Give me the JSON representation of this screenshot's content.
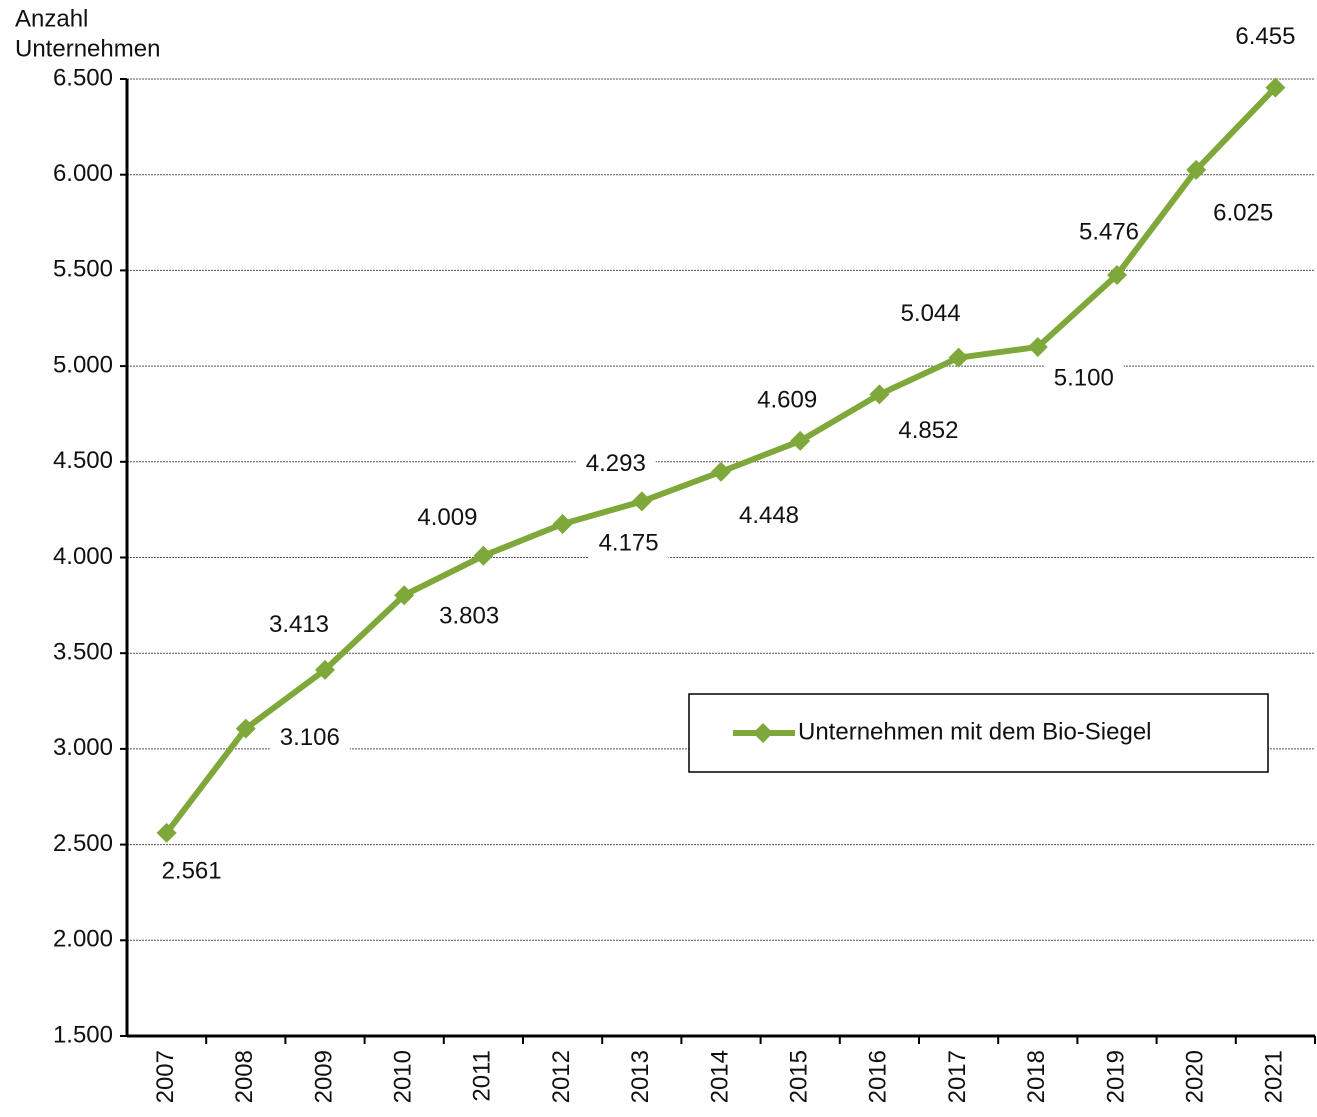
{
  "chart_data": {
    "type": "line",
    "ylabel": [
      "Anzahl",
      "Unternehmen"
    ],
    "categories": [
      "2007",
      "2008",
      "2009",
      "2010",
      "2011",
      "2012",
      "2013",
      "2014",
      "2015",
      "2016",
      "2017",
      "2018",
      "2019",
      "2020",
      "2021"
    ],
    "series": [
      {
        "name": "Unternehmen mit dem Bio-Siegel",
        "color": "#7fa83a",
        "values": [
          2561,
          3106,
          3413,
          3803,
          4009,
          4175,
          4293,
          4448,
          4609,
          4852,
          5044,
          5100,
          5476,
          6025,
          6455
        ],
        "value_labels": [
          "2.561",
          "3.106",
          "3.413",
          "3.803",
          "4.009",
          "4.175",
          "4.293",
          "4.448",
          "4.609",
          "4.852",
          "5.044",
          "5.100",
          "5.476",
          "6.025",
          "6.455"
        ]
      }
    ],
    "ylim": [
      1500,
      6500
    ],
    "yticks": [
      {
        "value": 1500,
        "label": "1.500"
      },
      {
        "value": 2000,
        "label": "2.000"
      },
      {
        "value": 2500,
        "label": "2.500"
      },
      {
        "value": 3000,
        "label": "3.000"
      },
      {
        "value": 3500,
        "label": "3.500"
      },
      {
        "value": 4000,
        "label": "4.000"
      },
      {
        "value": 4500,
        "label": "4.500"
      },
      {
        "value": 5000,
        "label": "5.000"
      },
      {
        "value": 5500,
        "label": "5.500"
      },
      {
        "value": 6000,
        "label": "6.000"
      },
      {
        "value": 6500,
        "label": "6.500"
      }
    ],
    "grid": true,
    "legend": "right"
  }
}
